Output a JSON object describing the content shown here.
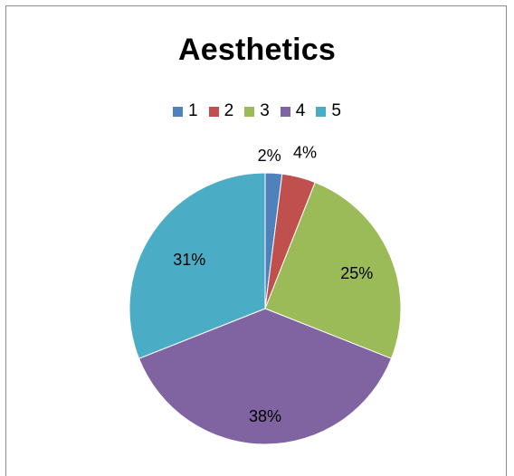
{
  "chart_data": {
    "type": "pie",
    "title": "Aesthetics",
    "categories": [
      "1",
      "2",
      "3",
      "4",
      "5"
    ],
    "values": [
      2,
      4,
      25,
      38,
      31
    ],
    "labels": [
      "2%",
      "4%",
      "25%",
      "38%",
      "31%"
    ],
    "colors": [
      "#4f81bd",
      "#c0504d",
      "#9bbb59",
      "#8064a2",
      "#4bacc6"
    ],
    "legend": "top",
    "start_angle_deg": 0,
    "direction": "clockwise"
  }
}
